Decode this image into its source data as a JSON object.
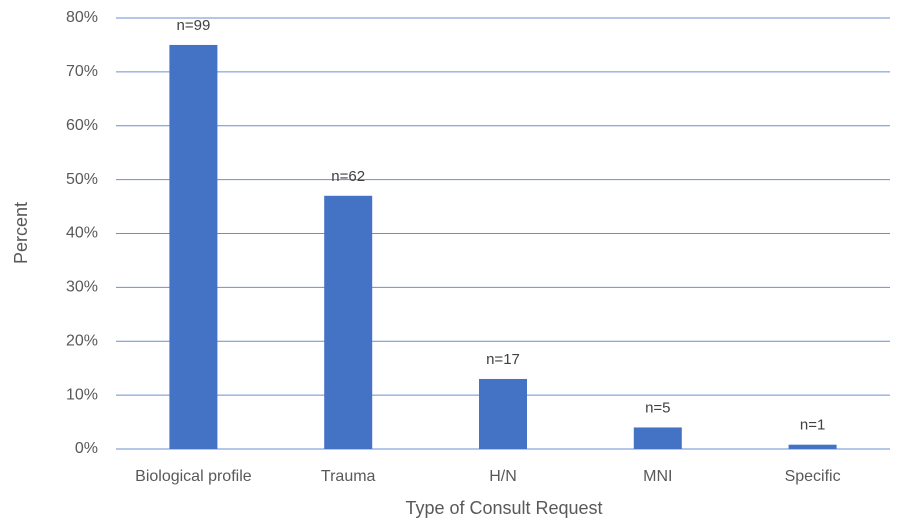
{
  "chart_data": {
    "type": "bar",
    "x_label": "Type of Consult Request",
    "y_label": "Percent",
    "categories": [
      "Biological profile",
      "Trauma",
      "H/N",
      "MNI",
      "Specific"
    ],
    "values": [
      75,
      47,
      13,
      4,
      0.8
    ],
    "annotations": [
      "n=99",
      "n=62",
      "n=17",
      "n=5",
      "n=1"
    ],
    "color": "#4472c4",
    "grid_color": "#6a8fd0",
    "ylim": [
      0,
      80
    ],
    "yticks": [
      {
        "value": 0,
        "label": "0%"
      },
      {
        "value": 10,
        "label": "10%"
      },
      {
        "value": 20,
        "label": "20%"
      },
      {
        "value": 30,
        "label": "30%"
      },
      {
        "value": 40,
        "label": "40%"
      },
      {
        "value": 50,
        "label": "50%"
      },
      {
        "value": 60,
        "label": "60%"
      },
      {
        "value": 70,
        "label": "70%"
      },
      {
        "value": 80,
        "label": "80%"
      }
    ],
    "grid": true
  }
}
